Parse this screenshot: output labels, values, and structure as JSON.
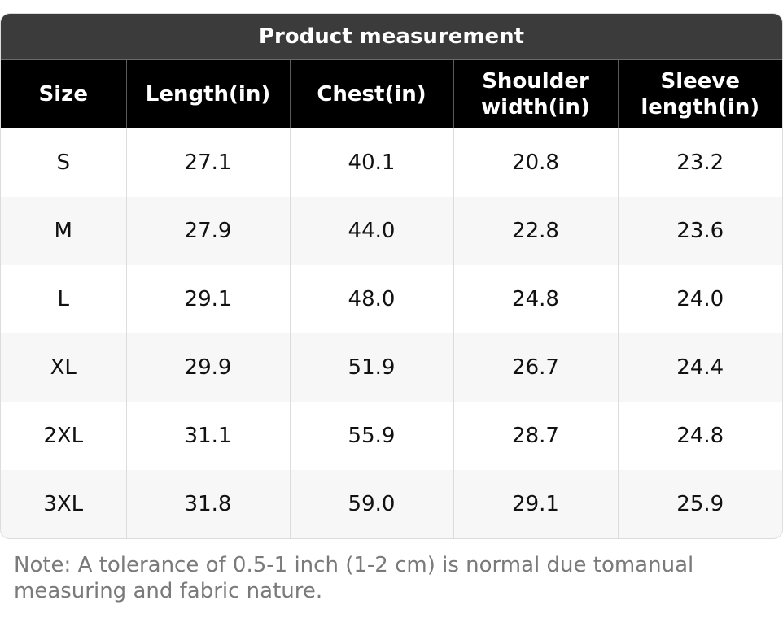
{
  "table": {
    "title": "Product measurement",
    "columns": [
      "Size",
      "Length(in)",
      "Chest(in)",
      "Shoulder\nwidth(in)",
      "Sleeve\nlength(in)"
    ],
    "rows": [
      [
        "S",
        "27.1",
        "40.1",
        "20.8",
        "23.2"
      ],
      [
        "M",
        "27.9",
        "44.0",
        "22.8",
        "23.6"
      ],
      [
        "L",
        "29.1",
        "48.0",
        "24.8",
        "24.0"
      ],
      [
        "XL",
        "29.9",
        "51.9",
        "26.7",
        "24.4"
      ],
      [
        "2XL",
        "31.1",
        "55.9",
        "28.7",
        "24.8"
      ],
      [
        "3XL",
        "31.8",
        "59.0",
        "29.1",
        "25.9"
      ]
    ]
  },
  "note": "Note: A tolerance of 0.5-1 inch (1-2 cm) is normal due tomanual measuring and fabric nature.",
  "colors": {
    "title_bar": "#3b3b3b",
    "header_row": "#000000",
    "stripe_row": "#f7f7f7",
    "note_text": "#7a7a7a"
  }
}
